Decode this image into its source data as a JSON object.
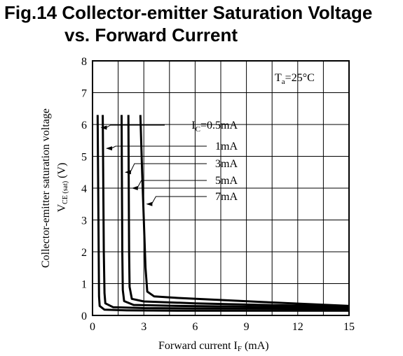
{
  "figure_title": {
    "line1": "Fig.14 Collector-emitter Saturation Voltage",
    "line2": "vs. Forward Current"
  },
  "chart_data": {
    "type": "line",
    "title": "Fig.14 Collector-emitter Saturation Voltage vs. Forward Current",
    "xlabel": {
      "text": "Forward current I",
      "sub": "F",
      "unit": " (mA)"
    },
    "ylabel": {
      "line1": "Collector-emitter saturation voltage",
      "line2_main": "V",
      "line2_sub": "CE (sat)",
      "line2_unit": " (V)"
    },
    "xlim": [
      0,
      15
    ],
    "ylim": [
      0,
      8
    ],
    "xticks": [
      0,
      3,
      6,
      9,
      12,
      15
    ],
    "yticks": [
      0,
      1,
      2,
      3,
      4,
      5,
      6,
      7,
      8
    ],
    "x_grid_step": 1.5,
    "grid": true,
    "condition": {
      "main": "T",
      "sub": "a",
      "rest": "=25°C"
    },
    "series": [
      {
        "label_main": "I",
        "label_sub": "C",
        "label_rest": "=0.5mA",
        "points": [
          [
            0.3,
            6.3
          ],
          [
            0.33,
            4.0
          ],
          [
            0.36,
            2.0
          ],
          [
            0.38,
            0.6
          ],
          [
            0.42,
            0.3
          ],
          [
            0.7,
            0.18
          ],
          [
            2,
            0.16
          ],
          [
            5,
            0.15
          ],
          [
            10,
            0.15
          ],
          [
            15,
            0.15
          ]
        ]
      },
      {
        "label_main": "",
        "label_sub": "",
        "label_rest": "1mA",
        "points": [
          [
            0.6,
            6.3
          ],
          [
            0.63,
            4.0
          ],
          [
            0.66,
            2.0
          ],
          [
            0.7,
            0.7
          ],
          [
            0.75,
            0.38
          ],
          [
            1.2,
            0.26
          ],
          [
            3,
            0.23
          ],
          [
            6,
            0.22
          ],
          [
            10,
            0.21
          ],
          [
            15,
            0.2
          ]
        ]
      },
      {
        "label_main": "",
        "label_sub": "",
        "label_rest": "3mA",
        "points": [
          [
            1.7,
            6.3
          ],
          [
            1.72,
            4.0
          ],
          [
            1.74,
            2.0
          ],
          [
            1.77,
            0.8
          ],
          [
            1.85,
            0.45
          ],
          [
            2.4,
            0.33
          ],
          [
            5,
            0.3
          ],
          [
            10,
            0.27
          ],
          [
            15,
            0.24
          ]
        ]
      },
      {
        "label_main": "",
        "label_sub": "",
        "label_rest": "5mA",
        "points": [
          [
            2.1,
            6.3
          ],
          [
            2.12,
            4.0
          ],
          [
            2.14,
            2.0
          ],
          [
            2.17,
            0.9
          ],
          [
            2.3,
            0.52
          ],
          [
            3,
            0.44
          ],
          [
            6,
            0.38
          ],
          [
            10,
            0.33
          ],
          [
            15,
            0.28
          ]
        ]
      },
      {
        "label_main": "",
        "label_sub": "",
        "label_rest": "7mA",
        "points": [
          [
            2.8,
            6.3
          ],
          [
            2.9,
            4.5
          ],
          [
            3.0,
            3.0
          ],
          [
            3.1,
            1.5
          ],
          [
            3.2,
            0.75
          ],
          [
            3.6,
            0.6
          ],
          [
            5,
            0.55
          ],
          [
            10,
            0.42
          ],
          [
            15,
            0.3
          ]
        ]
      }
    ]
  }
}
